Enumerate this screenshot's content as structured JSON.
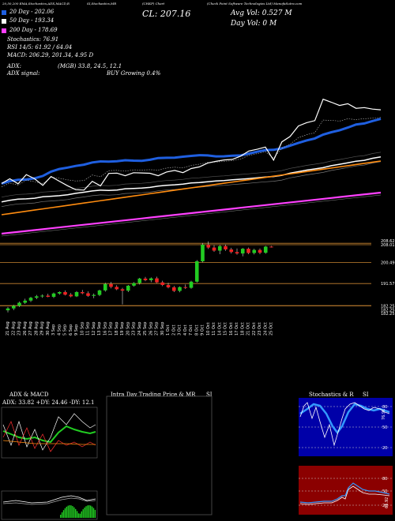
{
  "header": {
    "ema_note": "20,50,200 EMA,Stochastics,ADX,MACD,R",
    "si_note": "SI,Stochastics,MR",
    "chart_label": "(CHKP) Chart",
    "company": "(Check Point Software Technologies Ltd) ManofaSutra.com",
    "cl": "CL: 207.16",
    "avg_vol": "Avg Vol: 0.527 M",
    "day_vol": "Day Vol: 0  M",
    "day20": "20 Day - 202.06",
    "day50": "50 Day - 193.34",
    "day200": "200 Day - 178.69",
    "stoch": "Stochastics: 76.91",
    "rsi": "RSI 14/5: 61.92 / 64.04",
    "macd": "MACD: 206.29, 201.34, 4.95 D",
    "adx": "ADX: ",
    "adx_vals": "(MGB) 33.8, 24.5, 12.1",
    "adx_signal": "ADX signal:",
    "buy": "BUY Growing 0.4%"
  },
  "colors": {
    "ema20": "#1f5fe0",
    "ema50": "#ff8c10",
    "ema200": "#ff40ff",
    "up": "#22cc22",
    "down": "#ee2222",
    "level": "#c88430"
  },
  "price_levels": [
    {
      "label": "208.01",
      "value": 208.0
    },
    {
      "label": "208.62",
      "value": 208.6
    },
    {
      "label": "200.49",
      "value": 200.5
    },
    {
      "label": "191.57",
      "value": 191.6
    },
    {
      "label": "182.25",
      "value": 182.2
    },
    {
      "label": "182.25",
      "value": 182.25
    },
    {
      "label": "182.25",
      "value": 182.3
    }
  ],
  "chart_data": {
    "type": "candlestick",
    "title": "(CHKP) Chart",
    "dates": [
      "21 Aug",
      "22 Aug",
      "23 Aug",
      "26 Aug",
      "27 Aug",
      "28 Aug",
      "29 Aug",
      "30 Aug",
      "3 Sep",
      "4 Sep",
      "5 Sep",
      "6 Sep",
      "9 Sep",
      "10 Sep",
      "11 Sep",
      "12 Sep",
      "13 Sep",
      "16 Sep",
      "17 Sep",
      "18 Sep",
      "19 Sep",
      "20 Sep",
      "23 Sep",
      "24 Sep",
      "25 Sep",
      "26 Sep",
      "27 Sep",
      "30 Sep",
      "1 Oct",
      "2 Oct",
      "3 Oct",
      "4 Oct",
      "7 Oct",
      "8 Oct",
      "9 Oct",
      "10 Oct",
      "11 Oct",
      "14 Oct",
      "15 Oct",
      "16 Oct",
      "17 Oct",
      "18 Oct",
      "21 Oct",
      "22 Oct",
      "23 Oct",
      "24 Oct",
      "25 Oct"
    ],
    "ohlc": [
      [
        180.3,
        181.7,
        179.4,
        181.1
      ],
      [
        181.1,
        182.6,
        180.4,
        182.2
      ],
      [
        182.2,
        184.0,
        181.7,
        183.5
      ],
      [
        183.5,
        185.2,
        183.0,
        184.4
      ],
      [
        184.4,
        186.0,
        183.8,
        185.6
      ],
      [
        185.6,
        186.8,
        185.0,
        186.2
      ],
      [
        186.2,
        187.0,
        185.6,
        186.5
      ],
      [
        186.5,
        187.3,
        185.8,
        186.0
      ],
      [
        186.0,
        187.8,
        185.5,
        187.4
      ],
      [
        187.4,
        188.3,
        186.9,
        188.0
      ],
      [
        188.0,
        188.7,
        186.6,
        186.9
      ],
      [
        186.9,
        187.6,
        185.8,
        186.2
      ],
      [
        186.2,
        188.4,
        185.9,
        188.0
      ],
      [
        188.0,
        188.9,
        187.1,
        187.5
      ],
      [
        187.5,
        188.3,
        186.0,
        186.4
      ],
      [
        186.4,
        187.4,
        185.4,
        186.8
      ],
      [
        186.8,
        189.0,
        186.3,
        188.7
      ],
      [
        188.7,
        191.9,
        188.2,
        191.4
      ],
      [
        191.4,
        192.3,
        189.6,
        190.2
      ],
      [
        190.2,
        190.9,
        188.8,
        189.2
      ],
      [
        189.2,
        189.8,
        182.8,
        188.6
      ],
      [
        188.6,
        191.0,
        188.0,
        190.7
      ],
      [
        190.7,
        192.2,
        190.3,
        191.8
      ],
      [
        191.8,
        194.0,
        191.2,
        193.7
      ],
      [
        193.7,
        194.4,
        192.6,
        193.0
      ],
      [
        193.0,
        194.2,
        192.2,
        193.8
      ],
      [
        193.8,
        194.5,
        191.8,
        192.1
      ],
      [
        192.1,
        192.8,
        190.5,
        191.0
      ],
      [
        191.0,
        191.9,
        189.6,
        190.0
      ],
      [
        190.0,
        190.6,
        188.0,
        188.5
      ],
      [
        188.5,
        190.4,
        187.9,
        190.1
      ],
      [
        190.1,
        191.2,
        189.3,
        189.8
      ],
      [
        189.8,
        192.8,
        189.4,
        192.4
      ],
      [
        192.4,
        201.5,
        192.0,
        201.0
      ],
      [
        201.0,
        208.7,
        200.6,
        208.0
      ],
      [
        208.0,
        209.4,
        206.2,
        206.8
      ],
      [
        206.8,
        207.8,
        205.0,
        205.5
      ],
      [
        205.5,
        207.9,
        204.0,
        207.4
      ],
      [
        207.4,
        208.1,
        205.4,
        206.0
      ],
      [
        206.0,
        206.7,
        204.3,
        204.9
      ],
      [
        204.9,
        206.4,
        203.8,
        204.3
      ],
      [
        204.3,
        206.6,
        203.1,
        206.3
      ],
      [
        206.3,
        206.8,
        204.0,
        204.5
      ],
      [
        204.5,
        206.3,
        203.9,
        205.8
      ],
      [
        205.8,
        206.4,
        204.0,
        204.6
      ],
      [
        204.6,
        207.5,
        204.2,
        207.2
      ],
      [
        207.2,
        207.5,
        206.8,
        207.16
      ]
    ],
    "ylim": [
      172,
      214
    ]
  },
  "ema_lines": {
    "close": [
      232.5,
      226.5,
      232.8,
      221.2,
      226.4,
      234.8,
      223.6,
      229.5,
      235.3,
      240.3,
      240.8,
      229.7,
      235.4,
      219.7,
      219.3,
      222.6,
      218.8,
      219.1,
      219.5,
      222.6,
      217.9,
      215.9,
      218.7,
      213.5,
      211.4,
      206.6,
      204.4,
      202.6,
      201.9,
      197.8,
      191.3,
      189.1,
      186.3,
      202.9,
      179.7,
      172.9,
      159.6,
      155.4,
      152.8,
      125.7,
      129.5,
      133.6,
      131.4,
      137.2,
      136.3,
      138.2,
      139.1
    ],
    "ema20": [
      232.6,
      229.5,
      227.8,
      227.4,
      225.9,
      222.9,
      217.4,
      214.1,
      212.3,
      210.2,
      208.6,
      205.8,
      204.5,
      204.7,
      204.3,
      203.0,
      203.5,
      203.7,
      202.4,
      200.2,
      199.9,
      199.7,
      198.5,
      197.5,
      196.6,
      196.9,
      198.1,
      198.0,
      197.2,
      196.9,
      194.6,
      192.2,
      190.1,
      189.8,
      187.9,
      184.6,
      181.1,
      177.9,
      175.4,
      170.5,
      167.5,
      165.1,
      161.6,
      157.7,
      156.4,
      153.3,
      150.6
    ],
    "ema50": [
      255.7,
      253.8,
      252.3,
      251.9,
      251.1,
      249.3,
      248.6,
      247.9,
      246.8,
      244.9,
      243.5,
      241.9,
      240.9,
      241.2,
      240.7,
      239.1,
      238.7,
      238.2,
      237.4,
      235.7,
      234.7,
      234.1,
      233.2,
      231.8,
      231.2,
      230.3,
      229.3,
      228.8,
      227.8,
      227.0,
      226.2,
      225.2,
      224.3,
      223.6,
      222.1,
      219.3,
      217.5,
      215.5,
      214.0,
      212.4,
      209.9,
      208.1,
      206.2,
      204.2,
      203.1,
      200.5,
      198.8
    ]
  },
  "sub_panels": {
    "adx_title": "ADX  & MACD",
    "adx_values": "ADX: 33.82  +DY: 24.46  -DY: 12.1",
    "intra_title": "Intra  Day Trading Price  & MR",
    "intra_si": "SI",
    "stoch_title": "Stochastics & R",
    "stoch_si": "SI",
    "stoch_val": "76.91",
    "rsi_val": "61.92"
  }
}
